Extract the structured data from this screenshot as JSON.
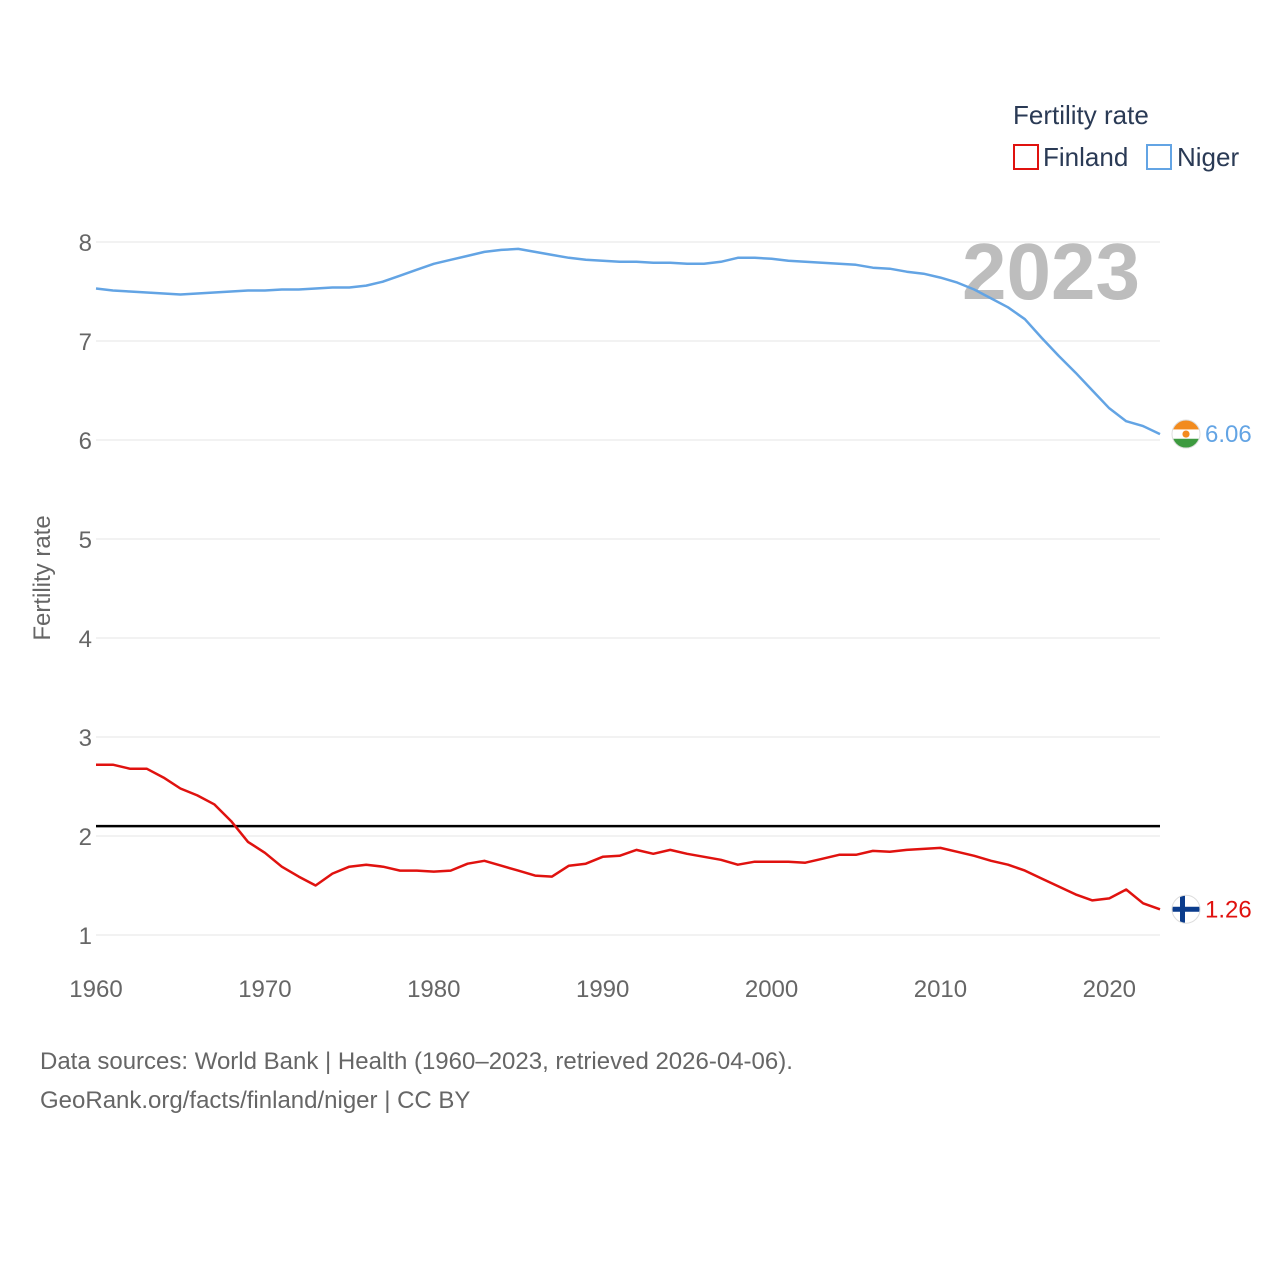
{
  "chart_data": {
    "type": "line",
    "legend_title": "Fertility rate",
    "ylabel": "Fertility rate",
    "year_label": "2023",
    "ylim": [
      0.9,
      8.1
    ],
    "xlim": [
      1960,
      2023
    ],
    "y_ticks": [
      "1",
      "2",
      "3",
      "4",
      "5",
      "6",
      "7",
      "8"
    ],
    "x_ticks": [
      "1960",
      "1970",
      "1980",
      "1990",
      "2000",
      "2010",
      "2020"
    ],
    "reference_line": 2.1,
    "series": [
      {
        "name": "Finland",
        "color": "#e0120f",
        "end_label": "1.26",
        "flag": "finland-flag-icon",
        "x": [
          1960,
          1961,
          1962,
          1963,
          1964,
          1965,
          1966,
          1967,
          1968,
          1969,
          1970,
          1971,
          1972,
          1973,
          1974,
          1975,
          1976,
          1977,
          1978,
          1979,
          1980,
          1981,
          1982,
          1983,
          1984,
          1985,
          1986,
          1987,
          1988,
          1989,
          1990,
          1991,
          1992,
          1993,
          1994,
          1995,
          1996,
          1997,
          1998,
          1999,
          2000,
          2001,
          2002,
          2003,
          2004,
          2005,
          2006,
          2007,
          2008,
          2009,
          2010,
          2011,
          2012,
          2013,
          2014,
          2015,
          2016,
          2017,
          2018,
          2019,
          2020,
          2021,
          2022,
          2023
        ],
        "values": [
          2.72,
          2.72,
          2.68,
          2.68,
          2.59,
          2.48,
          2.41,
          2.32,
          2.15,
          1.94,
          1.83,
          1.69,
          1.59,
          1.5,
          1.62,
          1.69,
          1.71,
          1.69,
          1.65,
          1.65,
          1.64,
          1.65,
          1.72,
          1.75,
          1.7,
          1.65,
          1.6,
          1.59,
          1.7,
          1.72,
          1.79,
          1.8,
          1.86,
          1.82,
          1.86,
          1.82,
          1.79,
          1.76,
          1.71,
          1.74,
          1.74,
          1.74,
          1.73,
          1.77,
          1.81,
          1.81,
          1.85,
          1.84,
          1.86,
          1.87,
          1.88,
          1.84,
          1.8,
          1.75,
          1.71,
          1.65,
          1.57,
          1.49,
          1.41,
          1.35,
          1.37,
          1.46,
          1.32,
          1.26
        ]
      },
      {
        "name": "Niger",
        "color": "#63a4e4",
        "end_label": "6.06",
        "flag": "niger-flag-icon",
        "x": [
          1960,
          1961,
          1962,
          1963,
          1964,
          1965,
          1966,
          1967,
          1968,
          1969,
          1970,
          1971,
          1972,
          1973,
          1974,
          1975,
          1976,
          1977,
          1978,
          1979,
          1980,
          1981,
          1982,
          1983,
          1984,
          1985,
          1986,
          1987,
          1988,
          1989,
          1990,
          1991,
          1992,
          1993,
          1994,
          1995,
          1996,
          1997,
          1998,
          1999,
          2000,
          2001,
          2002,
          2003,
          2004,
          2005,
          2006,
          2007,
          2008,
          2009,
          2010,
          2011,
          2012,
          2013,
          2014,
          2015,
          2016,
          2017,
          2018,
          2019,
          2020,
          2021,
          2022,
          2023
        ],
        "values": [
          7.53,
          7.51,
          7.5,
          7.49,
          7.48,
          7.47,
          7.48,
          7.49,
          7.5,
          7.51,
          7.51,
          7.52,
          7.52,
          7.53,
          7.54,
          7.54,
          7.56,
          7.6,
          7.66,
          7.72,
          7.78,
          7.82,
          7.86,
          7.9,
          7.92,
          7.93,
          7.9,
          7.87,
          7.84,
          7.82,
          7.81,
          7.8,
          7.8,
          7.79,
          7.79,
          7.78,
          7.78,
          7.8,
          7.84,
          7.84,
          7.83,
          7.81,
          7.8,
          7.79,
          7.78,
          7.77,
          7.74,
          7.73,
          7.7,
          7.68,
          7.64,
          7.59,
          7.52,
          7.43,
          7.34,
          7.22,
          7.03,
          6.85,
          6.68,
          6.5,
          6.32,
          6.19,
          6.14,
          6.06
        ]
      }
    ]
  },
  "footer": {
    "line1": "Data sources: World Bank | Health (1960–2023, retrieved 2026-04-06).",
    "line2": "GeoRank.org/facts/finland/niger | CC BY"
  }
}
